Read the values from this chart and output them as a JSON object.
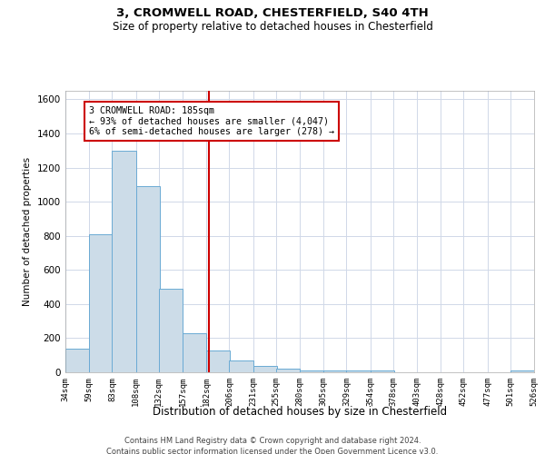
{
  "title1": "3, CROMWELL ROAD, CHESTERFIELD, S40 4TH",
  "title2": "Size of property relative to detached houses in Chesterfield",
  "xlabel": "Distribution of detached houses by size in Chesterfield",
  "ylabel": "Number of detached properties",
  "annotation_line1": "3 CROMWELL ROAD: 185sqm",
  "annotation_line2": "← 93% of detached houses are smaller (4,047)",
  "annotation_line3": "6% of semi-detached houses are larger (278) →",
  "property_size": 185,
  "footer1": "Contains HM Land Registry data © Crown copyright and database right 2024.",
  "footer2": "Contains public sector information licensed under the Open Government Licence v3.0.",
  "bar_color": "#ccdce8",
  "bar_edge_color": "#6aaad4",
  "vline_color": "#cc0000",
  "annotation_box_color": "#cc0000",
  "grid_color": "#d0d8e8",
  "bin_edges": [
    34,
    59,
    83,
    108,
    132,
    157,
    182,
    206,
    231,
    255,
    280,
    305,
    329,
    354,
    378,
    403,
    428,
    452,
    477,
    501,
    526
  ],
  "bin_labels": [
    "34sqm",
    "59sqm",
    "83sqm",
    "108sqm",
    "132sqm",
    "157sqm",
    "182sqm",
    "206sqm",
    "231sqm",
    "255sqm",
    "280sqm",
    "305sqm",
    "329sqm",
    "354sqm",
    "378sqm",
    "403sqm",
    "428sqm",
    "452sqm",
    "477sqm",
    "501sqm",
    "526sqm"
  ],
  "counts": [
    140,
    810,
    1300,
    1090,
    490,
    230,
    130,
    70,
    35,
    22,
    13,
    10,
    10,
    10,
    0,
    0,
    0,
    0,
    0,
    10
  ],
  "ylim": [
    0,
    1650
  ],
  "yticks": [
    0,
    200,
    400,
    600,
    800,
    1000,
    1200,
    1400,
    1600
  ]
}
